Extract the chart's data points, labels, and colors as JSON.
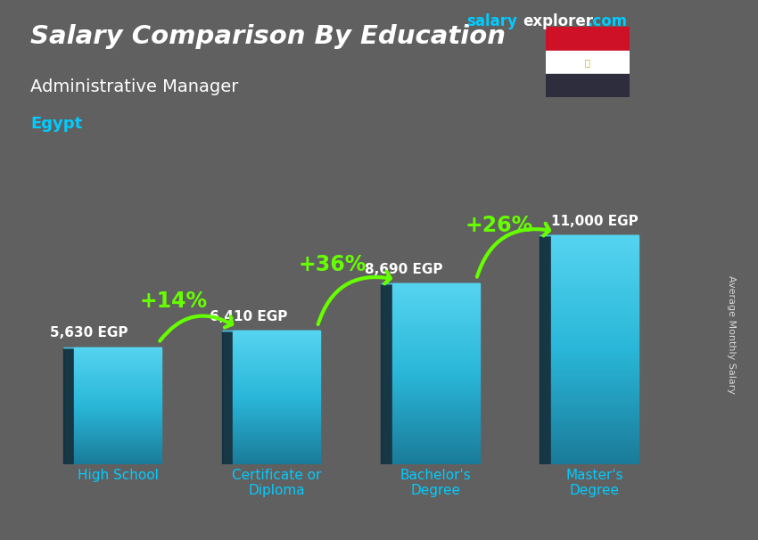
{
  "title": "Salary Comparison By Education",
  "subtitle": "Administrative Manager",
  "country": "Egypt",
  "ylabel": "Average Monthly Salary",
  "website_salary": "salary",
  "website_explorer": "explorer",
  "website_dot_com": ".com",
  "categories": [
    "High School",
    "Certificate or\nDiploma",
    "Bachelor's\nDegree",
    "Master's\nDegree"
  ],
  "values": [
    5630,
    6410,
    8690,
    11000
  ],
  "value_labels": [
    "5,630 EGP",
    "6,410 EGP",
    "8,690 EGP",
    "11,000 EGP"
  ],
  "pct_labels": [
    "+14%",
    "+36%",
    "+26%"
  ],
  "bar_face_color": "#29b6d8",
  "bar_side_color": "#1a7a99",
  "bar_top_color": "#55d4f0",
  "bar_dark_side": "#0a3040",
  "bg_color": "#606060",
  "title_color": "#ffffff",
  "subtitle_color": "#ffffff",
  "country_color": "#00ccff",
  "pct_color": "#66ff00",
  "value_label_color": "#ffffff",
  "website_salary_color": "#00ccff",
  "website_explorer_color": "#ffffff",
  "arrow_color": "#66ff00",
  "xlabel_color": "#00ccff",
  "ylim": [
    0,
    14000
  ],
  "bar_width": 0.55,
  "flag_red": "#CE1126",
  "flag_white": "#FFFFFF",
  "flag_black": "#2d2d3d"
}
